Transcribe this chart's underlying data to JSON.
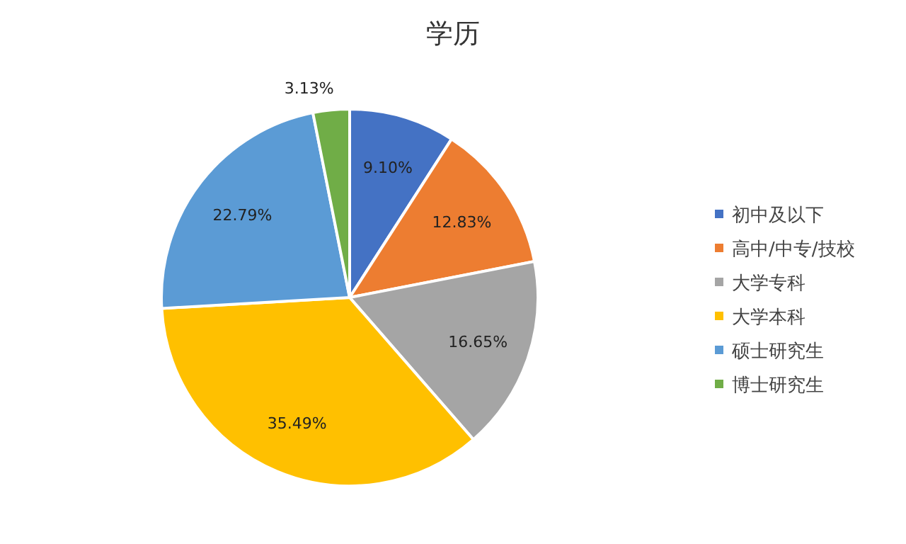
{
  "chart_data": {
    "type": "pie",
    "title": "学历",
    "categories": [
      "初中及以下",
      "高中/中专/技校",
      "大学专科",
      "大学本科",
      "硕士研究生",
      "博士研究生"
    ],
    "values": [
      9.1,
      12.83,
      16.65,
      35.49,
      22.79,
      3.13
    ],
    "colors": [
      "#4472c4",
      "#ed7d31",
      "#a5a5a5",
      "#ffc000",
      "#5b9bd5",
      "#70ad47"
    ],
    "value_labels": [
      "9.10%",
      "12.83%",
      "16.65%",
      "35.49%",
      "22.79%",
      "3.13%"
    ],
    "legend": "right"
  }
}
